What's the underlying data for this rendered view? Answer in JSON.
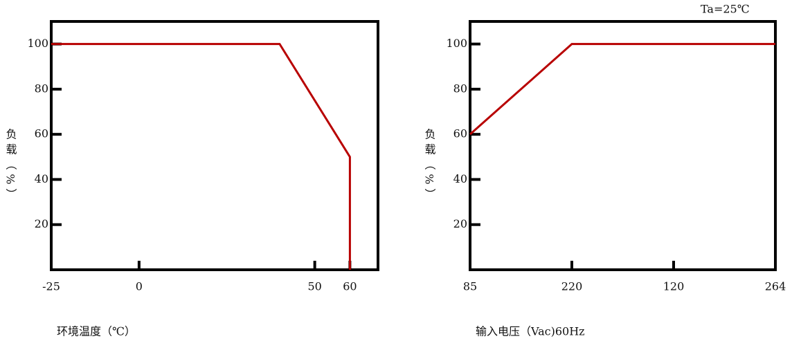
{
  "chart_data": [
    {
      "type": "line",
      "x_label": "环境温度（℃）",
      "y_label": "负载（%）",
      "x": [
        -25,
        40,
        60,
        60
      ],
      "values": [
        100,
        100,
        50,
        0
      ],
      "color": "#b80000",
      "xlim": [
        -25,
        68
      ],
      "xticks": [
        -25,
        0,
        50,
        60
      ],
      "ylim": [
        0,
        110
      ],
      "yticks": [
        20,
        40,
        60,
        80,
        100
      ]
    },
    {
      "type": "line",
      "x_label": "输入电压（Vac)60Hz",
      "y_label": "负载（%）",
      "annotation": "Ta=25℃",
      "categories": [
        "85",
        "220",
        "120",
        "264"
      ],
      "values": [
        60,
        100,
        100,
        100
      ],
      "color": "#b80000",
      "ylim": [
        0,
        110
      ],
      "yticks": [
        20,
        40,
        60,
        80,
        100
      ]
    }
  ]
}
